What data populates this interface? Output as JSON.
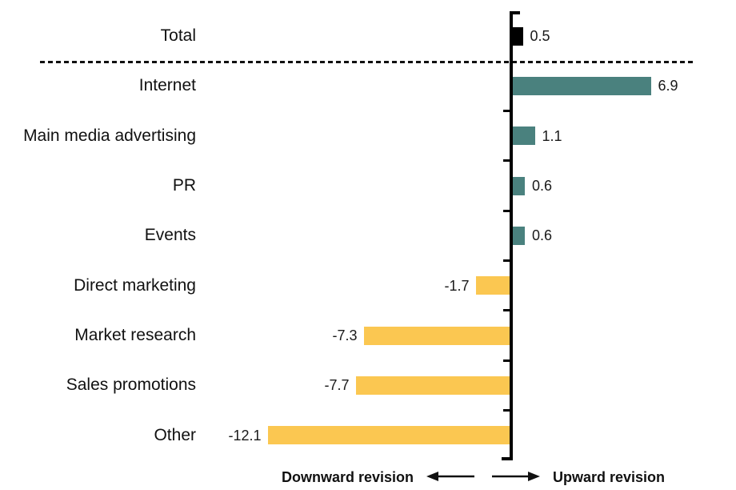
{
  "chart_data": {
    "type": "bar",
    "orientation": "horizontal",
    "title": "",
    "categories": [
      "Total",
      "Internet",
      "Main media advertising",
      "PR",
      "Events",
      "Direct marketing",
      "Market research",
      "Sales promotions",
      "Other"
    ],
    "values": [
      0.5,
      6.9,
      1.1,
      0.6,
      0.6,
      -1.7,
      -7.3,
      -7.7,
      -12.1
    ],
    "value_labels": [
      "0.5",
      "6.9",
      "1.1",
      "0.6",
      "0.6",
      "-1.7",
      "-7.3",
      "-7.7",
      "-12.1"
    ],
    "baseline_value": 0,
    "separator_after_category": "Total",
    "grid": false,
    "legend": "none",
    "annotations": {
      "downward_label": "Downward revision",
      "upward_label": "Upward revision"
    },
    "colors": {
      "total_bar": "#000000",
      "positive_bar": "#4A817E",
      "negative_bar": "#FBC751",
      "axis": "#000000",
      "text": "#111111"
    }
  }
}
